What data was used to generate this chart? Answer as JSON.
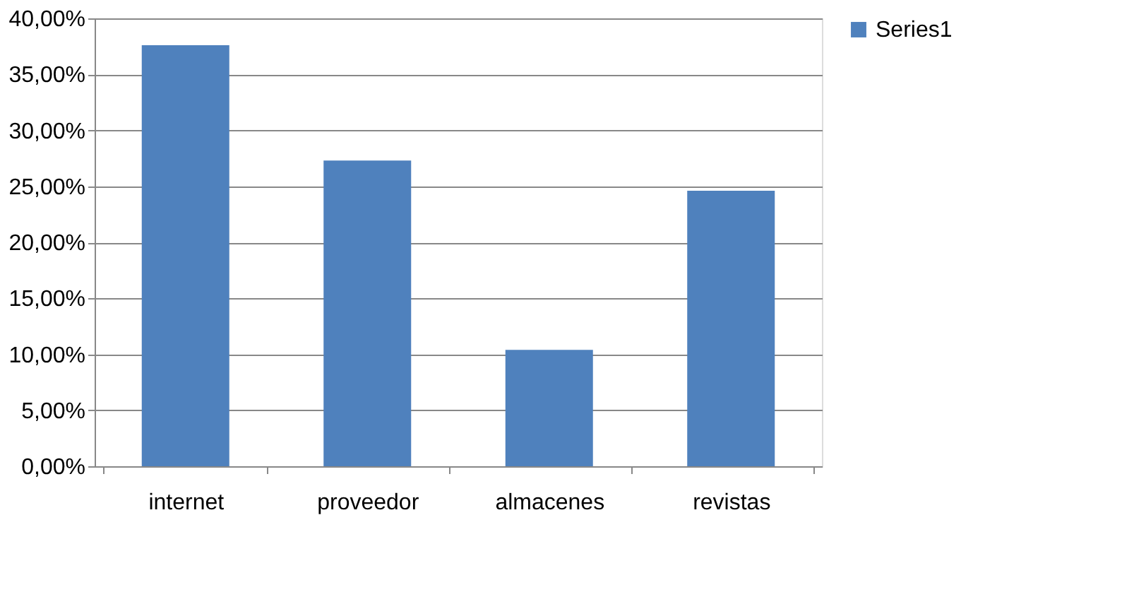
{
  "chart_data": {
    "type": "bar",
    "categories": [
      "internet",
      "proveedor",
      "almacenes",
      "revistas"
    ],
    "series": [
      {
        "name": "Series1",
        "color": "#4f81bd",
        "values": [
          37.6,
          27.3,
          10.4,
          24.6
        ]
      }
    ],
    "ylim": [
      0,
      40
    ],
    "yticks": [
      {
        "value": 0,
        "label": "0,00%"
      },
      {
        "value": 5,
        "label": "5,00%"
      },
      {
        "value": 10,
        "label": "10,00%"
      },
      {
        "value": 15,
        "label": "15,00%"
      },
      {
        "value": 20,
        "label": "20,00%"
      },
      {
        "value": 25,
        "label": "25,00%"
      },
      {
        "value": 30,
        "label": "30,00%"
      },
      {
        "value": 35,
        "label": "35,00%"
      },
      {
        "value": 40,
        "label": "40,00%"
      }
    ],
    "grid": "y",
    "legend": "right"
  }
}
